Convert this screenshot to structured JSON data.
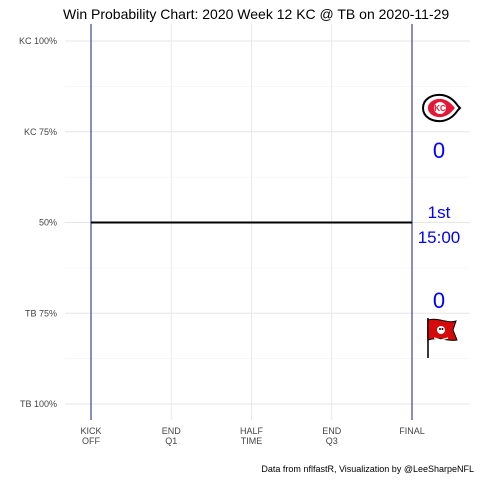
{
  "chart_data": {
    "type": "line",
    "title": "Win Probability Chart: 2020 Week 12 KC @ TB on 2020-11-29",
    "y_ticks": [
      {
        "value": 100,
        "label": "KC 100%"
      },
      {
        "value": 75,
        "label": "KC 75%"
      },
      {
        "value": 50,
        "label": "50%"
      },
      {
        "value": 25,
        "label": "TB 75%"
      },
      {
        "value": 0,
        "label": "TB 100%"
      }
    ],
    "x_ticks": [
      {
        "value": 0,
        "label": [
          "KICK",
          "OFF"
        ]
      },
      {
        "value": 1,
        "label": [
          "END",
          "Q1"
        ]
      },
      {
        "value": 2,
        "label": [
          "HALF",
          "TIME"
        ]
      },
      {
        "value": 3,
        "label": [
          "END",
          "Q3"
        ]
      },
      {
        "value": 4,
        "label": [
          "FINAL"
        ]
      }
    ],
    "xlim": [
      0,
      4
    ],
    "ylim": [
      0,
      100
    ],
    "series": [
      {
        "x": [
          0,
          4
        ],
        "y": [
          50,
          50
        ]
      }
    ],
    "line_color": "#000000",
    "boundary_line_color": "#1a1a8c",
    "grid": true,
    "annotations": {
      "kc_logo": "chiefs-logo",
      "kc_score": "0",
      "quarter": "1st",
      "clock": "15:00",
      "tb_score": "0",
      "tb_logo": "buccaneers-logo",
      "annotation_color": "#0000ff"
    },
    "caption": "Data from nflfastR, Visualization by @LeeSharpeNFL"
  }
}
